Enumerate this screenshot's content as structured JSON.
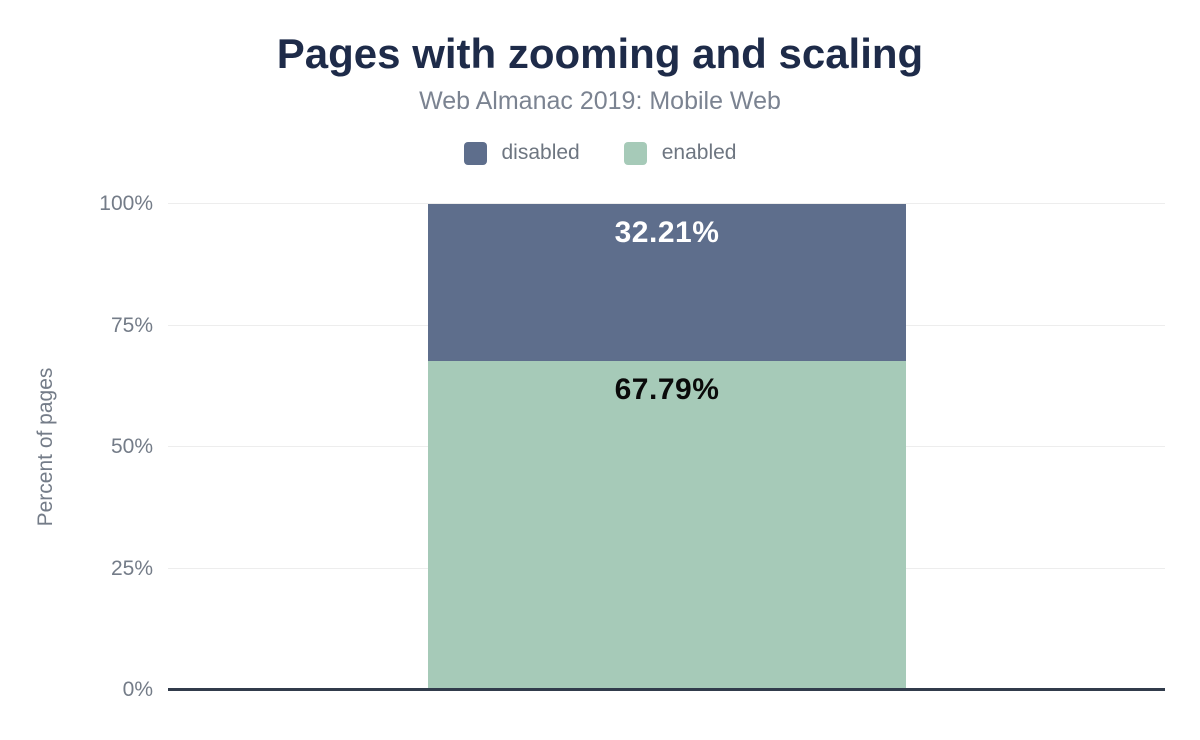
{
  "chart": {
    "title": "Pages with zooming and scaling",
    "subtitle": "Web Almanac 2019: Mobile Web",
    "ylabel": "Percent of pages"
  },
  "chart_data": {
    "type": "bar",
    "stacked": true,
    "categories": [
      ""
    ],
    "series": [
      {
        "name": "disabled",
        "values": [
          32.21
        ],
        "color": "#5e6e8c",
        "data_label": "32.21%",
        "data_label_color": "#ffffff"
      },
      {
        "name": "enabled",
        "values": [
          67.79
        ],
        "color": "#a6cab8",
        "data_label": "67.79%",
        "data_label_color": "#0a0a0a"
      }
    ],
    "title": "Pages with zooming and scaling",
    "subtitle": "Web Almanac 2019: Mobile Web",
    "xlabel": "",
    "ylabel": "Percent of pages",
    "ylim": [
      0,
      100
    ],
    "yticks": [
      0,
      25,
      50,
      75,
      100
    ],
    "ytick_suffix": "%",
    "grid": true,
    "legend_position": "top"
  },
  "ui": {
    "background_color": "#ffffff",
    "title_color": "#1e2b49",
    "subtitle_color": "#7b8391",
    "axis_text_color": "#747c88",
    "gridline_color": "#ededed",
    "baseline_color": "#313b4b"
  }
}
